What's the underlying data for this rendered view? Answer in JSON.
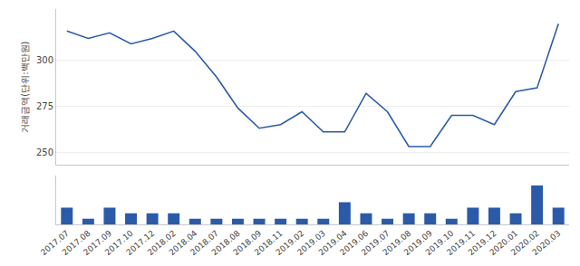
{
  "chart_data": [
    {
      "type": "line",
      "categories": [
        "2017.07",
        "2017.08",
        "2017.09",
        "2017.10",
        "2017.12",
        "2018.02",
        "2018.04",
        "2018.07",
        "2018.08",
        "2018.09",
        "2018.11",
        "2019.02",
        "2019.03",
        "2019.04",
        "2019.06",
        "2019.07",
        "2019.08",
        "2019.09",
        "2019.10",
        "2019.11",
        "2019.12",
        "2020.01",
        "2020.02",
        "2020.03"
      ],
      "values": [
        316,
        312,
        315,
        309,
        312,
        316,
        305,
        291,
        274,
        263,
        265,
        272,
        261,
        261,
        282,
        272,
        253,
        253,
        270,
        270,
        265,
        283,
        285,
        320
      ],
      "color": "#2b5ba8",
      "ylabel": "거래금액(단위:백만원)",
      "ylim": [
        243,
        328
      ],
      "yticks": [
        250,
        275,
        300
      ],
      "grid": true,
      "tick_labels": "y"
    },
    {
      "type": "bar",
      "categories": [
        "2017.07",
        "2017.08",
        "2017.09",
        "2017.10",
        "2017.12",
        "2018.02",
        "2018.04",
        "2018.07",
        "2018.08",
        "2018.09",
        "2018.11",
        "2019.02",
        "2019.03",
        "2019.04",
        "2019.06",
        "2019.07",
        "2019.08",
        "2019.09",
        "2019.10",
        "2019.11",
        "2019.12",
        "2020.01",
        "2020.02",
        "2020.03"
      ],
      "values": [
        3,
        1,
        3,
        2,
        2,
        2,
        1,
        1,
        1,
        1,
        1,
        1,
        1,
        4,
        2,
        1,
        2,
        2,
        1,
        3,
        3,
        2,
        7,
        3
      ],
      "color": "#2b5ba8",
      "ylim": [
        0,
        8.75
      ],
      "grid": false,
      "tick_labels": "x"
    }
  ]
}
